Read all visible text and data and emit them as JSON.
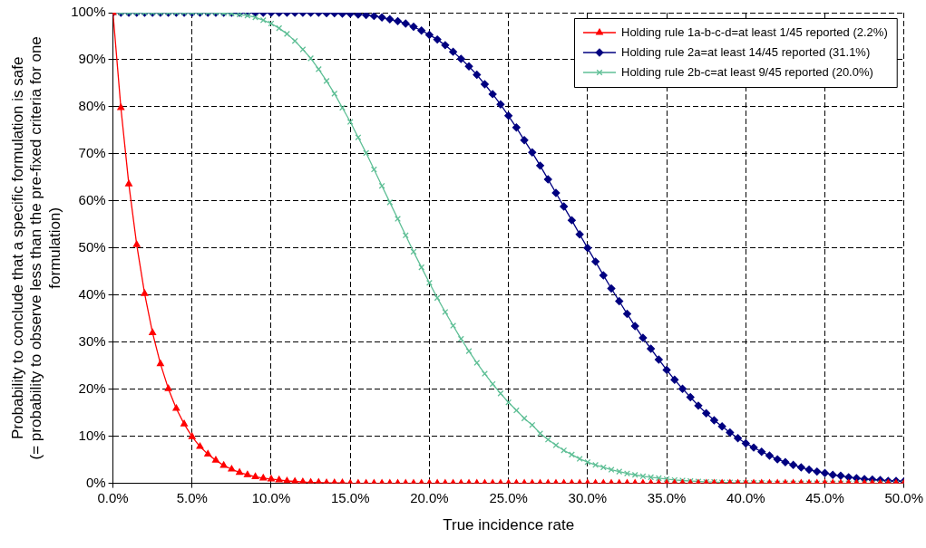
{
  "chart_data": {
    "type": "line",
    "ylabel": "Probability to conclude that a specific formulation is safe\n(= probability to observe less than the pre-fixed criteria for one\nformulation)",
    "xlabel": "True incidence rate",
    "x": [
      0,
      0.5,
      1,
      1.5,
      2,
      2.5,
      3,
      3.5,
      4,
      4.5,
      5,
      5.5,
      6,
      6.5,
      7,
      7.5,
      8,
      8.5,
      9,
      9.5,
      10,
      10.5,
      11,
      11.5,
      12,
      12.5,
      13,
      13.5,
      14,
      14.5,
      15,
      15.5,
      16,
      16.5,
      17,
      17.5,
      18,
      18.5,
      19,
      19.5,
      20,
      20.5,
      21,
      21.5,
      22,
      22.5,
      23,
      23.5,
      24,
      24.5,
      25,
      25.5,
      26,
      26.5,
      27,
      27.5,
      28,
      28.5,
      29,
      29.5,
      30,
      30.5,
      31,
      31.5,
      32,
      32.5,
      33,
      33.5,
      34,
      34.5,
      35,
      35.5,
      36,
      36.5,
      37,
      37.5,
      38,
      38.5,
      39,
      39.5,
      40,
      40.5,
      41,
      41.5,
      42,
      42.5,
      43,
      43.5,
      44,
      44.5,
      45,
      45.5,
      46,
      46.5,
      47,
      47.5,
      48,
      48.5,
      49,
      49.5,
      50
    ],
    "series": [
      {
        "name": "Holding rule 1a-b-c-d=at least 1/45 reported (2.2%)",
        "color": "#ff0000",
        "marker": "triangle",
        "values": [
          100,
          79.8,
          63.6,
          50.7,
          40.3,
          32.0,
          25.4,
          20.1,
          15.9,
          12.6,
          9.9,
          7.8,
          6.2,
          4.9,
          3.8,
          3.0,
          2.3,
          1.8,
          1.4,
          1.1,
          0.9,
          0.7,
          0.5,
          0.4,
          0.3,
          0.2,
          0.2,
          0.1,
          0.1,
          0.1,
          0,
          0,
          0,
          0,
          0,
          0,
          0,
          0,
          0,
          0,
          0,
          0,
          0,
          0,
          0,
          0,
          0,
          0,
          0,
          0,
          0,
          0,
          0,
          0,
          0,
          0,
          0,
          0,
          0,
          0,
          0,
          0,
          0,
          0,
          0,
          0,
          0,
          0,
          0,
          0,
          0,
          0,
          0,
          0,
          0,
          0,
          0,
          0,
          0,
          0,
          0,
          0,
          0,
          0,
          0,
          0,
          0,
          0,
          0,
          0,
          0,
          0,
          0,
          0,
          0,
          0,
          0,
          0,
          0,
          0,
          0
        ]
      },
      {
        "name": "Holding rule 2a=at least 14/45 reported (31.1%)",
        "color": "#000080",
        "marker": "diamond",
        "values": [
          100,
          100,
          100,
          100,
          100,
          100,
          100,
          100,
          100,
          100,
          100,
          100,
          100,
          100,
          100,
          100,
          100,
          100,
          100,
          100,
          100,
          100,
          100,
          100,
          100,
          100,
          100,
          99.9,
          99.9,
          99.8,
          99.8,
          99.6,
          99.5,
          99.3,
          99.0,
          98.6,
          98.2,
          97.7,
          97.0,
          96.2,
          95.3,
          94.3,
          93.1,
          91.7,
          90.2,
          88.6,
          86.8,
          84.8,
          82.7,
          80.5,
          78.1,
          75.6,
          72.9,
          70.3,
          67.5,
          64.6,
          61.7,
          58.8,
          55.9,
          52.9,
          50.0,
          47.1,
          44.2,
          41.4,
          38.7,
          36.0,
          33.4,
          30.9,
          28.6,
          26.3,
          24.1,
          22.0,
          20.1,
          18.3,
          16.5,
          14.9,
          13.4,
          12.1,
          10.8,
          9.6,
          8.5,
          7.6,
          6.7,
          5.9,
          5.1,
          4.5,
          3.9,
          3.4,
          2.9,
          2.5,
          2.2,
          1.8,
          1.6,
          1.3,
          1.1,
          0.9,
          0.8,
          0.7,
          0.5,
          0.5,
          0.4
        ]
      },
      {
        "name": "Holding rule 2b-c=at least 9/45 reported (20.0%)",
        "color": "#5fbf96",
        "marker": "cross",
        "values": [
          100,
          100,
          100,
          100,
          100,
          100,
          100,
          100,
          100,
          100,
          100,
          100,
          100,
          100,
          99.9,
          99.8,
          99.6,
          99.4,
          99.0,
          98.4,
          97.7,
          96.7,
          95.5,
          94.0,
          92.2,
          90.3,
          88.0,
          85.5,
          82.8,
          79.8,
          76.8,
          73.5,
          70.2,
          66.7,
          63.2,
          59.7,
          56.2,
          52.7,
          49.2,
          45.9,
          42.6,
          39.4,
          36.4,
          33.5,
          30.7,
          28.1,
          25.6,
          23.3,
          21.1,
          19.1,
          17.2,
          15.5,
          13.8,
          12.4,
          10.6,
          9.3,
          8.1,
          7.0,
          6.1,
          5.2,
          4.5,
          3.9,
          3.4,
          2.9,
          2.5,
          2.1,
          1.8,
          1.5,
          1.3,
          1.1,
          0.9,
          0.7,
          0.6,
          0.5,
          0.4,
          0.3,
          0.3,
          0.2,
          0.2,
          0.1,
          0.1,
          0.1,
          0.1,
          0,
          0,
          0,
          0,
          0,
          0,
          0,
          0,
          0,
          0,
          0,
          0,
          0,
          0,
          0,
          0,
          0,
          0
        ]
      }
    ],
    "xlim": [
      0,
      50
    ],
    "xticks": [
      {
        "value": 0,
        "label": "0.0%"
      },
      {
        "value": 5,
        "label": "5.0%"
      },
      {
        "value": 10,
        "label": "10.0%"
      },
      {
        "value": 15,
        "label": "15.0%"
      },
      {
        "value": 20,
        "label": "20.0%"
      },
      {
        "value": 25,
        "label": "25.0%"
      },
      {
        "value": 30,
        "label": "30.0%"
      },
      {
        "value": 35,
        "label": "35.0%"
      },
      {
        "value": 40,
        "label": "40.0%"
      },
      {
        "value": 45,
        "label": "45.0%"
      },
      {
        "value": 50,
        "label": "50.0%"
      }
    ],
    "ylim": [
      0,
      100
    ],
    "yticks": [
      {
        "value": 0,
        "label": "0%"
      },
      {
        "value": 10,
        "label": "10%"
      },
      {
        "value": 20,
        "label": "20%"
      },
      {
        "value": 30,
        "label": "30%"
      },
      {
        "value": 40,
        "label": "40%"
      },
      {
        "value": 50,
        "label": "50%"
      },
      {
        "value": 60,
        "label": "60%"
      },
      {
        "value": 70,
        "label": "70%"
      },
      {
        "value": 80,
        "label": "80%"
      },
      {
        "value": 90,
        "label": "90%"
      },
      {
        "value": 100,
        "label": "100%"
      }
    ],
    "grid": true,
    "legend": "top right",
    "line_style": "solid"
  }
}
